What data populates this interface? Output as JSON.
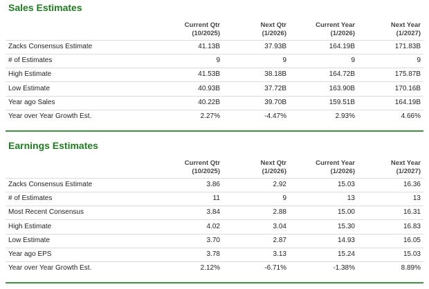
{
  "sections": [
    {
      "title": "Sales Estimates",
      "headers": [
        {
          "label": "Current Qtr",
          "period": "(10/2025)"
        },
        {
          "label": "Next Qtr",
          "period": "(1/2026)"
        },
        {
          "label": "Current Year",
          "period": "(1/2026)"
        },
        {
          "label": "Next Year",
          "period": "(1/2027)"
        }
      ],
      "rows": [
        [
          "Zacks Consensus Estimate",
          "41.13B",
          "37.93B",
          "164.19B",
          "171.83B"
        ],
        [
          "# of Estimates",
          "9",
          "9",
          "9",
          "9"
        ],
        [
          "High Estimate",
          "41.53B",
          "38.18B",
          "164.72B",
          "175.87B"
        ],
        [
          "Low Estimate",
          "40.93B",
          "37.72B",
          "163.90B",
          "170.16B"
        ],
        [
          "Year ago Sales",
          "40.22B",
          "39.70B",
          "159.51B",
          "164.19B"
        ],
        [
          "Year over Year Growth Est.",
          "2.27%",
          "-4.47%",
          "2.93%",
          "4.66%"
        ]
      ]
    },
    {
      "title": "Earnings Estimates",
      "headers": [
        {
          "label": "Current Qtr",
          "period": "(10/2025)"
        },
        {
          "label": "Next Qtr",
          "period": "(1/2026)"
        },
        {
          "label": "Current Year",
          "period": "(1/2026)"
        },
        {
          "label": "Next Year",
          "period": "(1/2027)"
        }
      ],
      "rows": [
        [
          "Zacks Consensus Estimate",
          "3.86",
          "2.92",
          "15.03",
          "16.36"
        ],
        [
          "# of Estimates",
          "11",
          "9",
          "13",
          "13"
        ],
        [
          "Most Recent Consensus",
          "3.84",
          "2.88",
          "15.00",
          "16.31"
        ],
        [
          "High Estimate",
          "4.02",
          "3.04",
          "15.30",
          "16.83"
        ],
        [
          "Low Estimate",
          "3.70",
          "2.87",
          "14.93",
          "16.05"
        ],
        [
          "Year ago EPS",
          "3.78",
          "3.13",
          "15.24",
          "15.03"
        ],
        [
          "Year over Year Growth Est.",
          "2.12%",
          "-6.71%",
          "-1.38%",
          "8.89%"
        ]
      ]
    }
  ]
}
